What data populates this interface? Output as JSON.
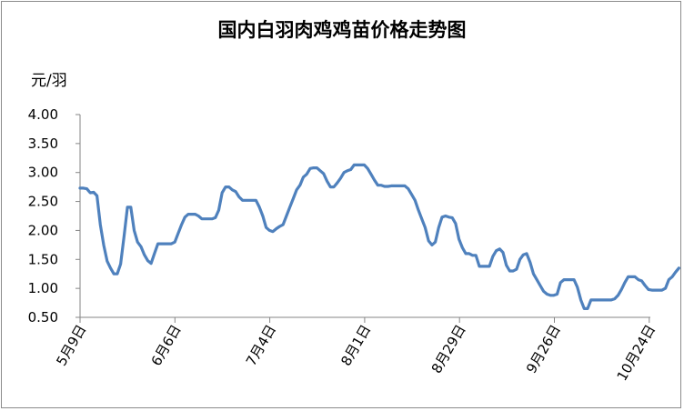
{
  "chart_data": {
    "type": "line",
    "title": "国内白羽肉鸡鸡苗价格走势图",
    "ylabel": "元/羽",
    "xlabel": "",
    "ylim": [
      0.5,
      4.0
    ],
    "yticks": [
      "0.50",
      "1.00",
      "1.50",
      "2.00",
      "2.50",
      "3.00",
      "3.50",
      "4.00"
    ],
    "xticks": [
      "5月9日",
      "6月6日",
      "7月4日",
      "8月1日",
      "8月29日",
      "9月26日",
      "10月24日"
    ],
    "grid": false,
    "line_color": "#4f81bd",
    "x_unit": "day",
    "points": [
      [
        0,
        2.73
      ],
      [
        1,
        2.73
      ],
      [
        2,
        2.72
      ],
      [
        3,
        2.65
      ],
      [
        4,
        2.66
      ],
      [
        5,
        2.6
      ],
      [
        6,
        2.1
      ],
      [
        7,
        1.75
      ],
      [
        8,
        1.47
      ],
      [
        9,
        1.35
      ],
      [
        10,
        1.25
      ],
      [
        11,
        1.25
      ],
      [
        12,
        1.42
      ],
      [
        13,
        1.9
      ],
      [
        14,
        2.4
      ],
      [
        15,
        2.4
      ],
      [
        16,
        2.0
      ],
      [
        17,
        1.8
      ],
      [
        18,
        1.72
      ],
      [
        19,
        1.58
      ],
      [
        20,
        1.48
      ],
      [
        21,
        1.43
      ],
      [
        22,
        1.6
      ],
      [
        23,
        1.77
      ],
      [
        24,
        1.77
      ],
      [
        25,
        1.77
      ],
      [
        26,
        1.77
      ],
      [
        27,
        1.77
      ],
      [
        28,
        1.8
      ],
      [
        29,
        1.95
      ],
      [
        30,
        2.1
      ],
      [
        31,
        2.23
      ],
      [
        32,
        2.28
      ],
      [
        33,
        2.28
      ],
      [
        34,
        2.28
      ],
      [
        35,
        2.25
      ],
      [
        36,
        2.2
      ],
      [
        37,
        2.2
      ],
      [
        38,
        2.2
      ],
      [
        39,
        2.2
      ],
      [
        40,
        2.22
      ],
      [
        41,
        2.35
      ],
      [
        42,
        2.65
      ],
      [
        43,
        2.75
      ],
      [
        44,
        2.75
      ],
      [
        45,
        2.7
      ],
      [
        46,
        2.67
      ],
      [
        47,
        2.58
      ],
      [
        48,
        2.52
      ],
      [
        49,
        2.52
      ],
      [
        50,
        2.52
      ],
      [
        51,
        2.52
      ],
      [
        52,
        2.52
      ],
      [
        53,
        2.4
      ],
      [
        54,
        2.25
      ],
      [
        55,
        2.05
      ],
      [
        56,
        2.0
      ],
      [
        57,
        1.98
      ],
      [
        58,
        2.03
      ],
      [
        59,
        2.07
      ],
      [
        60,
        2.1
      ],
      [
        61,
        2.25
      ],
      [
        62,
        2.4
      ],
      [
        63,
        2.55
      ],
      [
        64,
        2.7
      ],
      [
        65,
        2.78
      ],
      [
        66,
        2.92
      ],
      [
        67,
        2.97
      ],
      [
        68,
        3.07
      ],
      [
        69,
        3.08
      ],
      [
        70,
        3.08
      ],
      [
        71,
        3.03
      ],
      [
        72,
        2.98
      ],
      [
        73,
        2.85
      ],
      [
        74,
        2.75
      ],
      [
        75,
        2.75
      ],
      [
        76,
        2.82
      ],
      [
        77,
        2.9
      ],
      [
        78,
        3.0
      ],
      [
        79,
        3.03
      ],
      [
        80,
        3.05
      ],
      [
        81,
        3.13
      ],
      [
        82,
        3.13
      ],
      [
        83,
        3.13
      ],
      [
        84,
        3.13
      ],
      [
        85,
        3.07
      ],
      [
        86,
        2.97
      ],
      [
        87,
        2.87
      ],
      [
        88,
        2.78
      ],
      [
        89,
        2.78
      ],
      [
        90,
        2.76
      ],
      [
        91,
        2.76
      ],
      [
        92,
        2.77
      ],
      [
        93,
        2.77
      ],
      [
        94,
        2.77
      ],
      [
        95,
        2.77
      ],
      [
        96,
        2.77
      ],
      [
        97,
        2.72
      ],
      [
        98,
        2.62
      ],
      [
        99,
        2.52
      ],
      [
        100,
        2.35
      ],
      [
        101,
        2.2
      ],
      [
        102,
        2.05
      ],
      [
        103,
        1.82
      ],
      [
        104,
        1.75
      ],
      [
        105,
        1.8
      ],
      [
        106,
        2.05
      ],
      [
        107,
        2.23
      ],
      [
        108,
        2.25
      ],
      [
        109,
        2.23
      ],
      [
        110,
        2.22
      ],
      [
        111,
        2.12
      ],
      [
        112,
        1.85
      ],
      [
        113,
        1.7
      ],
      [
        114,
        1.6
      ],
      [
        115,
        1.6
      ],
      [
        116,
        1.57
      ],
      [
        117,
        1.57
      ],
      [
        118,
        1.38
      ],
      [
        119,
        1.38
      ],
      [
        120,
        1.38
      ],
      [
        121,
        1.38
      ],
      [
        122,
        1.55
      ],
      [
        123,
        1.65
      ],
      [
        124,
        1.68
      ],
      [
        125,
        1.62
      ],
      [
        126,
        1.4
      ],
      [
        127,
        1.3
      ],
      [
        128,
        1.3
      ],
      [
        129,
        1.33
      ],
      [
        130,
        1.5
      ],
      [
        131,
        1.58
      ],
      [
        132,
        1.6
      ],
      [
        133,
        1.45
      ],
      [
        134,
        1.25
      ],
      [
        135,
        1.15
      ],
      [
        136,
        1.05
      ],
      [
        137,
        0.95
      ],
      [
        138,
        0.9
      ],
      [
        139,
        0.88
      ],
      [
        140,
        0.88
      ],
      [
        141,
        0.9
      ],
      [
        142,
        1.1
      ],
      [
        143,
        1.15
      ],
      [
        144,
        1.15
      ],
      [
        145,
        1.15
      ],
      [
        146,
        1.15
      ],
      [
        147,
        1.02
      ],
      [
        148,
        0.8
      ],
      [
        149,
        0.65
      ],
      [
        150,
        0.65
      ],
      [
        151,
        0.8
      ],
      [
        152,
        0.8
      ],
      [
        153,
        0.8
      ],
      [
        154,
        0.8
      ],
      [
        155,
        0.8
      ],
      [
        156,
        0.8
      ],
      [
        157,
        0.8
      ],
      [
        158,
        0.82
      ],
      [
        159,
        0.88
      ],
      [
        160,
        0.98
      ],
      [
        161,
        1.1
      ],
      [
        162,
        1.2
      ],
      [
        163,
        1.2
      ],
      [
        164,
        1.2
      ],
      [
        165,
        1.15
      ],
      [
        166,
        1.13
      ],
      [
        167,
        1.05
      ],
      [
        168,
        0.98
      ],
      [
        169,
        0.97
      ],
      [
        170,
        0.97
      ],
      [
        171,
        0.97
      ],
      [
        172,
        0.97
      ],
      [
        173,
        1.0
      ],
      [
        174,
        1.15
      ],
      [
        175,
        1.2
      ],
      [
        176,
        1.28
      ],
      [
        177,
        1.35
      ]
    ]
  }
}
